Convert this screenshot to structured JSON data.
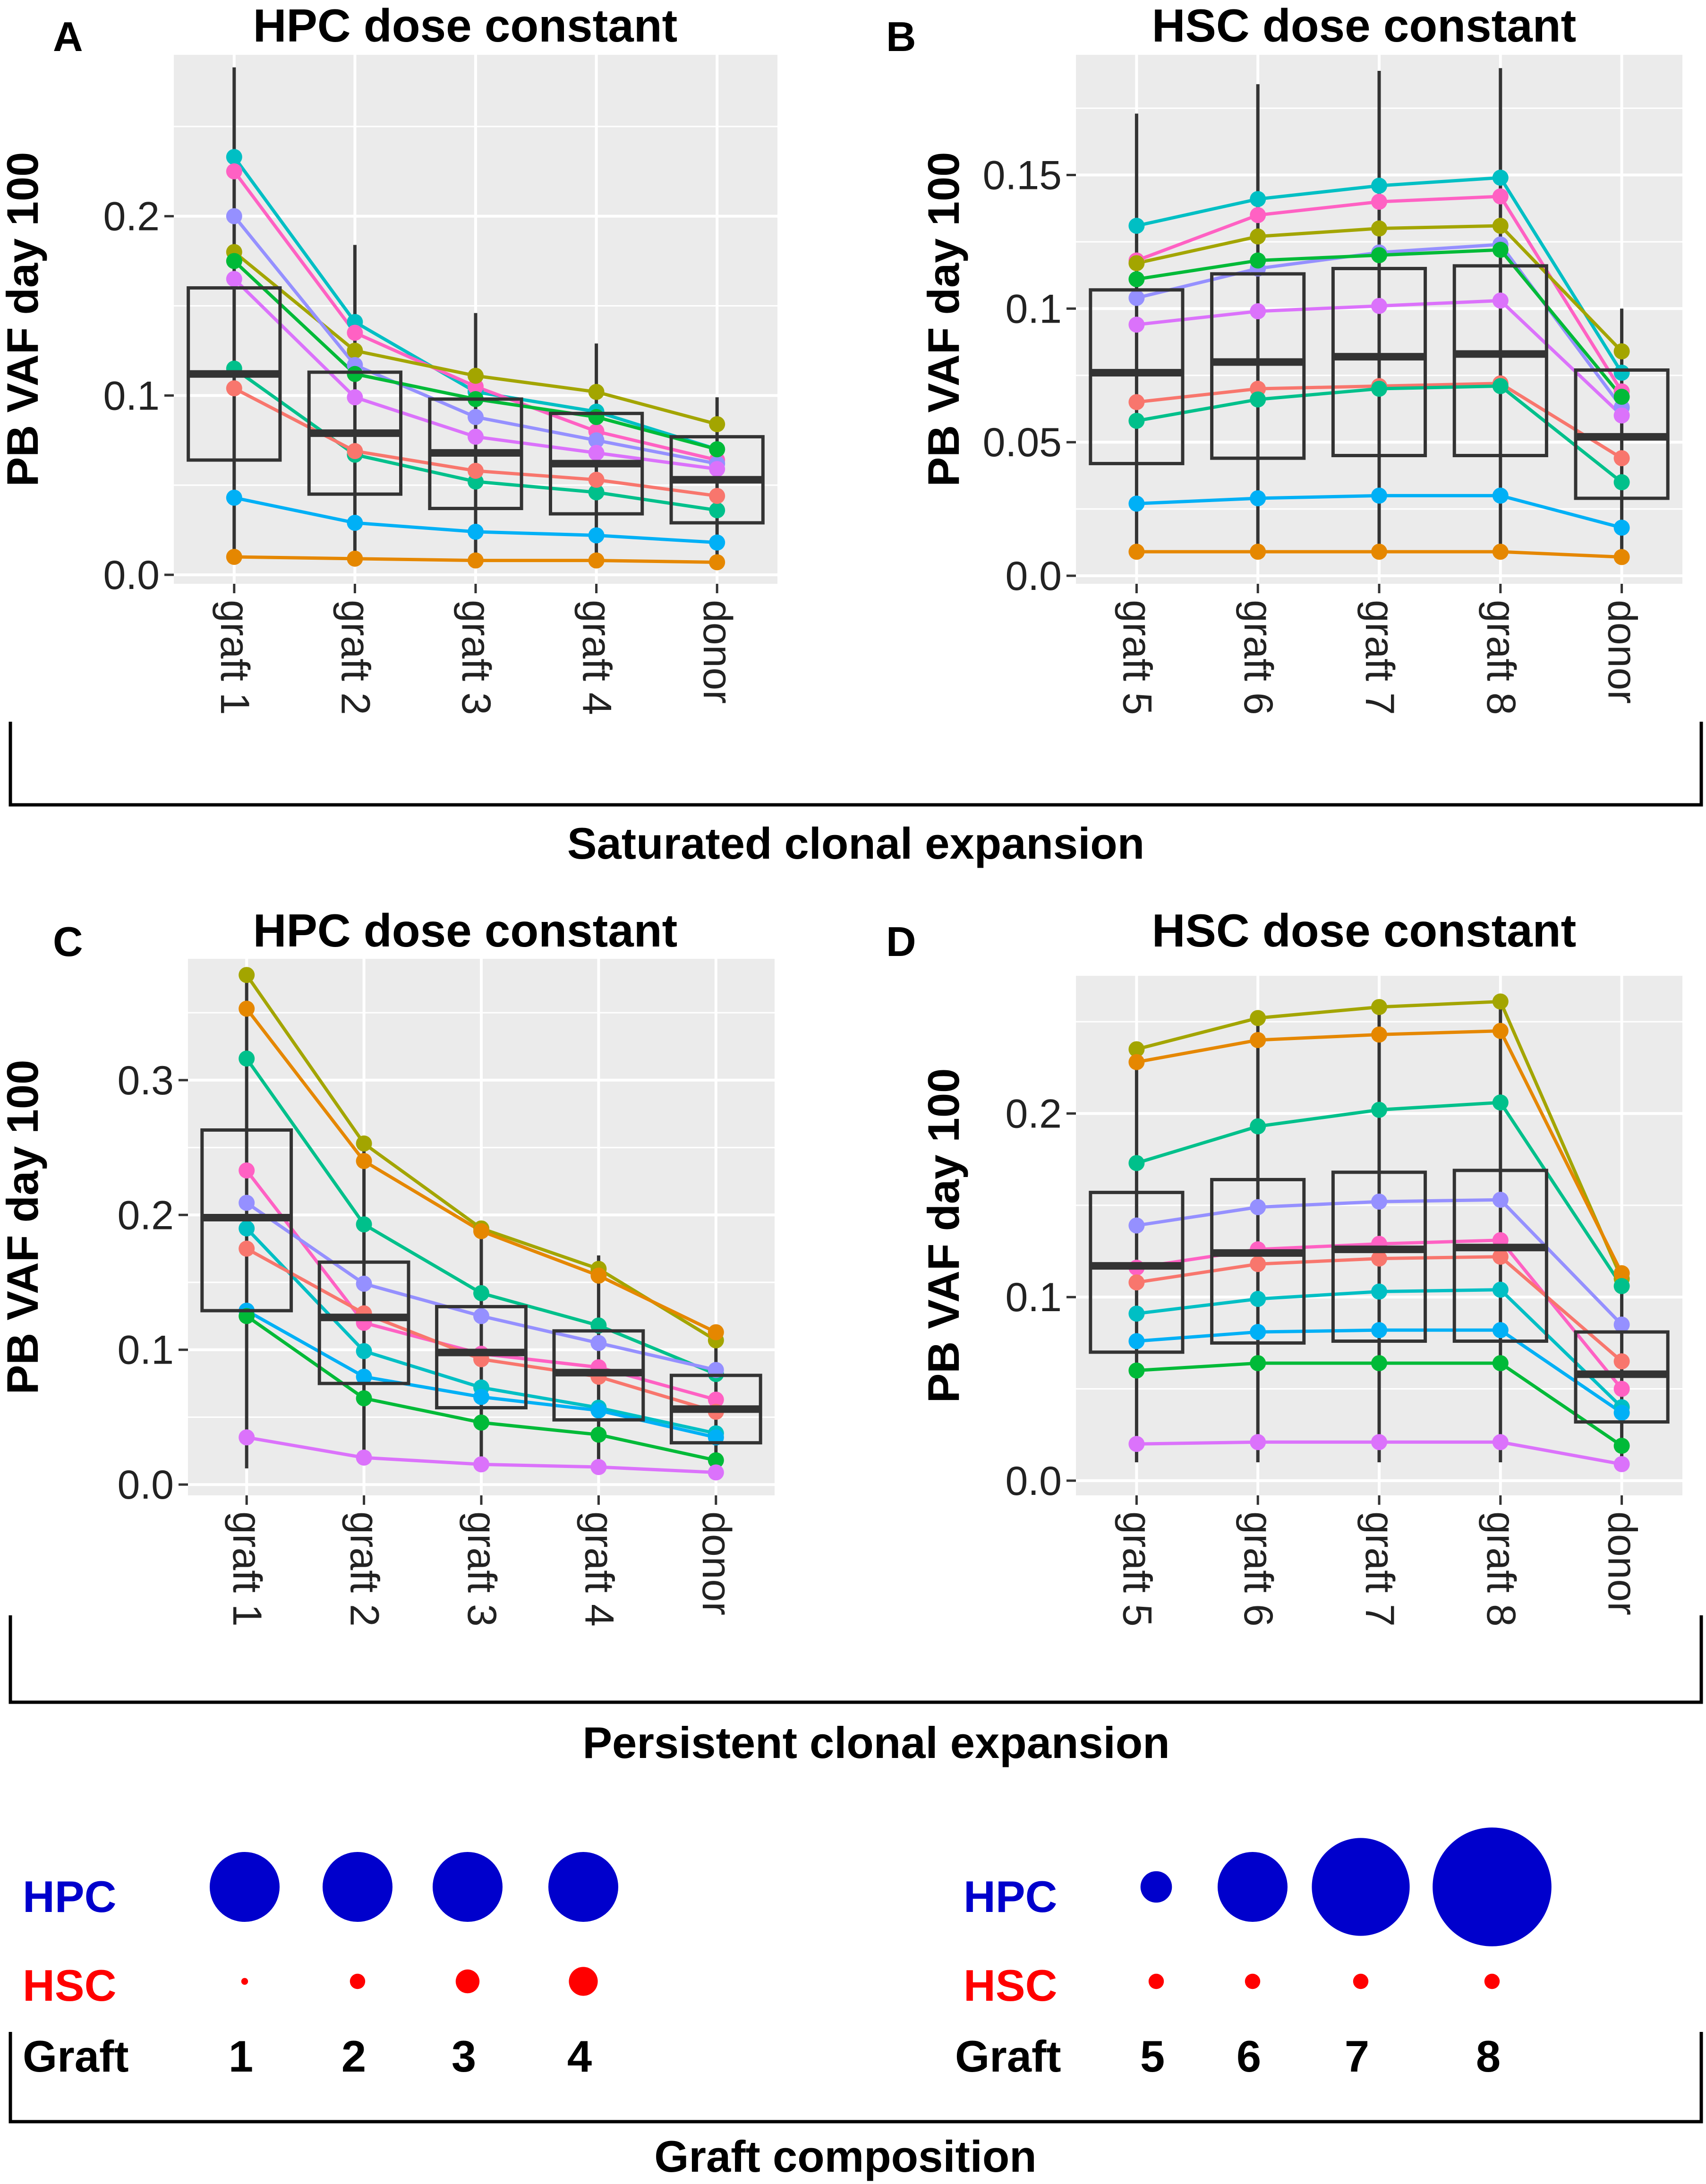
{
  "figure": {
    "brackets": [
      {
        "label": "Saturated clonal expansion"
      },
      {
        "label": "Persistent clonal expansion"
      },
      {
        "label": "Graft composition"
      }
    ],
    "legend": {
      "hpc_label": "HPC",
      "hsc_label": "HSC",
      "graft_label": "Graft",
      "hpc_color": "#0000CC",
      "hsc_color": "#FF0000",
      "left": {
        "grafts": [
          "1",
          "2",
          "3",
          "4"
        ],
        "hpc_relative_size": [
          1,
          1,
          1,
          1
        ],
        "hsc_relative_size": [
          0.2,
          0.45,
          0.7,
          0.85
        ]
      },
      "right": {
        "grafts": [
          "5",
          "6",
          "7",
          "8"
        ],
        "hpc_relative_size": [
          0.45,
          1,
          1.4,
          1.7
        ],
        "hsc_relative_size": [
          0.45,
          0.45,
          0.45,
          0.45
        ]
      }
    }
  },
  "chart_data": [
    {
      "panel": "A",
      "type": "box+line",
      "title": "HPC dose constant",
      "ylabel": "PB VAF  day 100",
      "xlabel": "",
      "categories": [
        "graft 1",
        "graft 2",
        "graft 3",
        "graft 4",
        "donor"
      ],
      "ylim": [
        -0.005,
        0.29
      ],
      "yticks": [
        0.0,
        0.1,
        0.2
      ],
      "ytick_labels": [
        "0.0",
        "0.1",
        "0.2"
      ],
      "grid": true,
      "boxes": [
        {
          "q1": 0.064,
          "median": 0.112,
          "q3": 0.16,
          "wmin": 0.01,
          "wmax": 0.283
        },
        {
          "q1": 0.045,
          "median": 0.079,
          "q3": 0.113,
          "wmin": 0.009,
          "wmax": 0.184
        },
        {
          "q1": 0.037,
          "median": 0.068,
          "q3": 0.098,
          "wmin": 0.008,
          "wmax": 0.146
        },
        {
          "q1": 0.034,
          "median": 0.062,
          "q3": 0.09,
          "wmin": 0.008,
          "wmax": 0.129
        },
        {
          "q1": 0.029,
          "median": 0.053,
          "q3": 0.077,
          "wmin": 0.007,
          "wmax": 0.099
        }
      ],
      "series": [
        {
          "color": "#00BFC4",
          "values": [
            0.233,
            0.141,
            0.102,
            0.091,
            0.07
          ]
        },
        {
          "color": "#FF61C3",
          "values": [
            0.225,
            0.135,
            0.105,
            0.08,
            0.064
          ]
        },
        {
          "color": "#A3A500",
          "values": [
            0.18,
            0.125,
            0.111,
            0.102,
            0.084
          ]
        },
        {
          "color": "#9590FF",
          "values": [
            0.2,
            0.117,
            0.088,
            0.075,
            0.062
          ]
        },
        {
          "color": "#00BA38",
          "values": [
            0.175,
            0.112,
            0.098,
            0.088,
            0.07
          ]
        },
        {
          "color": "#DB72FB",
          "values": [
            0.165,
            0.099,
            0.077,
            0.068,
            0.059
          ]
        },
        {
          "color": "#00C08B",
          "values": [
            0.115,
            0.067,
            0.052,
            0.046,
            0.036
          ]
        },
        {
          "color": "#F8766D",
          "values": [
            0.104,
            0.069,
            0.058,
            0.053,
            0.044
          ]
        },
        {
          "color": "#00B0F6",
          "values": [
            0.043,
            0.029,
            0.024,
            0.022,
            0.018
          ]
        },
        {
          "color": "#E58700",
          "values": [
            0.01,
            0.009,
            0.008,
            0.008,
            0.007
          ]
        }
      ]
    },
    {
      "panel": "B",
      "type": "box+line",
      "title": "HSC dose constant",
      "ylabel": "PB VAF  day 100",
      "xlabel": "",
      "categories": [
        "graft 5",
        "graft 6",
        "graft 7",
        "graft 8",
        "donor"
      ],
      "ylim": [
        -0.003,
        0.195
      ],
      "yticks": [
        0.0,
        0.05,
        0.1,
        0.15
      ],
      "ytick_labels": [
        "0.0",
        "0.05",
        "0.1",
        "0.15"
      ],
      "grid": true,
      "boxes": [
        {
          "q1": 0.042,
          "median": 0.076,
          "q3": 0.107,
          "wmin": 0.009,
          "wmax": 0.173
        },
        {
          "q1": 0.044,
          "median": 0.08,
          "q3": 0.113,
          "wmin": 0.009,
          "wmax": 0.184
        },
        {
          "q1": 0.045,
          "median": 0.082,
          "q3": 0.115,
          "wmin": 0.009,
          "wmax": 0.189
        },
        {
          "q1": 0.045,
          "median": 0.083,
          "q3": 0.116,
          "wmin": 0.009,
          "wmax": 0.19
        },
        {
          "q1": 0.029,
          "median": 0.052,
          "q3": 0.077,
          "wmin": 0.007,
          "wmax": 0.1
        }
      ],
      "series": [
        {
          "color": "#00BFC4",
          "values": [
            0.131,
            0.141,
            0.146,
            0.149,
            0.076
          ]
        },
        {
          "color": "#FF61C3",
          "values": [
            0.118,
            0.135,
            0.14,
            0.142,
            0.069
          ]
        },
        {
          "color": "#A3A500",
          "values": [
            0.117,
            0.127,
            0.13,
            0.131,
            0.084
          ]
        },
        {
          "color": "#9590FF",
          "values": [
            0.104,
            0.115,
            0.121,
            0.124,
            0.063
          ]
        },
        {
          "color": "#00BA38",
          "values": [
            0.111,
            0.118,
            0.12,
            0.122,
            0.067
          ]
        },
        {
          "color": "#DB72FB",
          "values": [
            0.094,
            0.099,
            0.101,
            0.103,
            0.06
          ]
        },
        {
          "color": "#F8766D",
          "values": [
            0.065,
            0.07,
            0.071,
            0.072,
            0.044
          ]
        },
        {
          "color": "#00C08B",
          "values": [
            0.058,
            0.066,
            0.07,
            0.071,
            0.035
          ]
        },
        {
          "color": "#00B0F6",
          "values": [
            0.027,
            0.029,
            0.03,
            0.03,
            0.018
          ]
        },
        {
          "color": "#E58700",
          "values": [
            0.009,
            0.009,
            0.009,
            0.009,
            0.007
          ]
        }
      ]
    },
    {
      "panel": "C",
      "type": "box+line",
      "title": "HPC dose constant",
      "ylabel": "PB VAF  day 100",
      "xlabel": "",
      "categories": [
        "graft 1",
        "graft 2",
        "graft 3",
        "graft 4",
        "donor"
      ],
      "ylim": [
        -0.008,
        0.39
      ],
      "yticks": [
        0.0,
        0.1,
        0.2,
        0.3
      ],
      "ytick_labels": [
        "0.0",
        "0.1",
        "0.2",
        "0.3"
      ],
      "grid": true,
      "boxes": [
        {
          "q1": 0.129,
          "median": 0.198,
          "q3": 0.263,
          "wmin": 0.012,
          "wmax": 0.378
        },
        {
          "q1": 0.075,
          "median": 0.124,
          "q3": 0.165,
          "wmin": 0.018,
          "wmax": 0.255
        },
        {
          "q1": 0.057,
          "median": 0.098,
          "q3": 0.132,
          "wmin": 0.014,
          "wmax": 0.19
        },
        {
          "q1": 0.048,
          "median": 0.083,
          "q3": 0.114,
          "wmin": 0.012,
          "wmax": 0.17
        },
        {
          "q1": 0.031,
          "median": 0.056,
          "q3": 0.081,
          "wmin": 0.008,
          "wmax": 0.113
        }
      ],
      "series": [
        {
          "color": "#A3A500",
          "values": [
            0.378,
            0.253,
            0.19,
            0.16,
            0.107
          ]
        },
        {
          "color": "#E58700",
          "values": [
            0.353,
            0.24,
            0.188,
            0.155,
            0.113
          ]
        },
        {
          "color": "#00C08B",
          "values": [
            0.316,
            0.193,
            0.142,
            0.118,
            0.082
          ]
        },
        {
          "color": "#FF61C3",
          "values": [
            0.233,
            0.12,
            0.097,
            0.087,
            0.063
          ]
        },
        {
          "color": "#9590FF",
          "values": [
            0.209,
            0.149,
            0.125,
            0.105,
            0.085
          ]
        },
        {
          "color": "#00BFC4",
          "values": [
            0.19,
            0.099,
            0.072,
            0.057,
            0.038
          ]
        },
        {
          "color": "#F8766D",
          "values": [
            0.175,
            0.127,
            0.093,
            0.08,
            0.054
          ]
        },
        {
          "color": "#00B0F6",
          "values": [
            0.129,
            0.08,
            0.065,
            0.055,
            0.035
          ]
        },
        {
          "color": "#00BA38",
          "values": [
            0.125,
            0.064,
            0.046,
            0.037,
            0.018
          ]
        },
        {
          "color": "#DB72FB",
          "values": [
            0.035,
            0.02,
            0.015,
            0.013,
            0.009
          ]
        }
      ]
    },
    {
      "panel": "D",
      "type": "box+line",
      "title": "HSC dose constant",
      "ylabel": "PB VAF  day 100",
      "xlabel": "",
      "categories": [
        "graft 5",
        "graft 6",
        "graft 7",
        "graft 8",
        "donor"
      ],
      "ylim": [
        -0.008,
        0.275
      ],
      "yticks": [
        0.0,
        0.1,
        0.2
      ],
      "ytick_labels": [
        "0.0",
        "0.1",
        "0.2"
      ],
      "grid": true,
      "boxes": [
        {
          "q1": 0.07,
          "median": 0.117,
          "q3": 0.157,
          "wmin": 0.01,
          "wmax": 0.235
        },
        {
          "q1": 0.075,
          "median": 0.124,
          "q3": 0.164,
          "wmin": 0.01,
          "wmax": 0.252
        },
        {
          "q1": 0.076,
          "median": 0.126,
          "q3": 0.168,
          "wmin": 0.01,
          "wmax": 0.258
        },
        {
          "q1": 0.076,
          "median": 0.127,
          "q3": 0.169,
          "wmin": 0.01,
          "wmax": 0.261
        },
        {
          "q1": 0.032,
          "median": 0.058,
          "q3": 0.081,
          "wmin": 0.008,
          "wmax": 0.114
        }
      ],
      "series": [
        {
          "color": "#A3A500",
          "values": [
            0.235,
            0.252,
            0.258,
            0.261,
            0.11
          ]
        },
        {
          "color": "#E58700",
          "values": [
            0.228,
            0.24,
            0.243,
            0.245,
            0.113
          ]
        },
        {
          "color": "#00C08B",
          "values": [
            0.173,
            0.193,
            0.202,
            0.206,
            0.106
          ]
        },
        {
          "color": "#9590FF",
          "values": [
            0.139,
            0.149,
            0.152,
            0.153,
            0.085
          ]
        },
        {
          "color": "#FF61C3",
          "values": [
            0.116,
            0.126,
            0.129,
            0.131,
            0.05
          ]
        },
        {
          "color": "#F8766D",
          "values": [
            0.108,
            0.118,
            0.121,
            0.122,
            0.065
          ]
        },
        {
          "color": "#00BFC4",
          "values": [
            0.091,
            0.099,
            0.103,
            0.104,
            0.04
          ]
        },
        {
          "color": "#00B0F6",
          "values": [
            0.076,
            0.081,
            0.082,
            0.082,
            0.037
          ]
        },
        {
          "color": "#00BA38",
          "values": [
            0.06,
            0.064,
            0.064,
            0.064,
            0.019
          ]
        },
        {
          "color": "#DB72FB",
          "values": [
            0.02,
            0.021,
            0.021,
            0.021,
            0.009
          ]
        }
      ]
    }
  ]
}
